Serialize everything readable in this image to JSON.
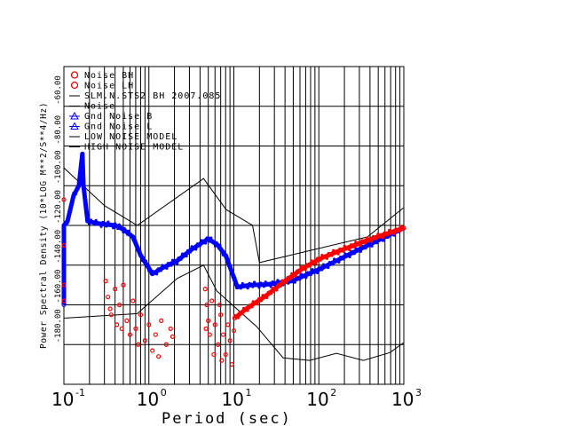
{
  "chart_data": {
    "type": "scatter",
    "title": "",
    "xlabel": "Period (sec)",
    "ylabel": "Power Spectral Density (10*LOG M**2/S**4/Hz)",
    "xscale": "log",
    "xlim": [
      0.1,
      1000
    ],
    "ylim": [
      -200,
      -40
    ],
    "grid": true,
    "legend_position": "top-left",
    "x_ticks": [
      {
        "base": "10",
        "exp": "-1"
      },
      {
        "base": "10",
        "exp": "0"
      },
      {
        "base": "10",
        "exp": "1"
      },
      {
        "base": "10",
        "exp": "2"
      },
      {
        "base": "10",
        "exp": "3"
      }
    ],
    "y_ticks": [
      "-60.00",
      "-80.00",
      "-100.00",
      "-120.00",
      "-140.00",
      "-160.00",
      "-180.00"
    ],
    "y_tick_values": [
      -60,
      -80,
      -100,
      -120,
      -140,
      -160,
      -180
    ],
    "legend": [
      {
        "label": "Noise BH",
        "symbol": "circle",
        "color": "#ff0000"
      },
      {
        "label": "Noise LH",
        "symbol": "circle",
        "color": "#ff0000"
      },
      {
        "label": "SLM.N.STS2 BH  2007.085",
        "symbol": "line",
        "color": "#000000"
      },
      {
        "label": "Noise",
        "symbol": "line",
        "color": "#000000"
      },
      {
        "label": "Gnd Noise B",
        "symbol": "triangle",
        "color": "#0000ff"
      },
      {
        "label": "Gnd Noise L",
        "symbol": "triangle",
        "color": "#0000ff"
      },
      {
        "label": "LOW NOISE MODEL",
        "symbol": "line",
        "color": "#000000"
      },
      {
        "label": "HIGH NOISE MODEL",
        "symbol": "line",
        "color": "#000000"
      }
    ],
    "series": [
      {
        "name": "HIGH NOISE MODEL",
        "color": "#000000",
        "kind": "line",
        "points": [
          [
            0.1,
            -91
          ],
          [
            0.3,
            -110
          ],
          [
            0.73,
            -120
          ],
          [
            4.4,
            -96.4
          ],
          [
            8.1,
            -112
          ],
          [
            16.6,
            -120
          ],
          [
            20,
            -138.7
          ],
          [
            372,
            -125.8
          ],
          [
            1000,
            -111
          ]
        ]
      },
      {
        "name": "LOW NOISE MODEL",
        "color": "#000000",
        "kind": "line",
        "points": [
          [
            0.1,
            -166.7
          ],
          [
            0.73,
            -164.4
          ],
          [
            2.15,
            -146.7
          ],
          [
            4.4,
            -140
          ],
          [
            6.3,
            -153
          ],
          [
            18.6,
            -171
          ],
          [
            38,
            -186.7
          ],
          [
            78,
            -188
          ],
          [
            161,
            -184.4
          ],
          [
            334,
            -188
          ],
          [
            690,
            -184
          ],
          [
            1000,
            -179
          ]
        ]
      },
      {
        "name": "Gnd Noise B",
        "color": "#0000ff",
        "kind": "dense",
        "points": [
          [
            0.1,
            -160
          ],
          [
            0.1,
            -120
          ],
          [
            0.11,
            -118
          ],
          [
            0.13,
            -105
          ],
          [
            0.15,
            -100
          ],
          [
            0.165,
            -84
          ],
          [
            0.17,
            -100
          ],
          [
            0.19,
            -117.8
          ],
          [
            0.25,
            -119
          ],
          [
            0.4,
            -120
          ],
          [
            0.5,
            -122
          ],
          [
            0.65,
            -125.8
          ],
          [
            0.8,
            -135
          ],
          [
            1.1,
            -144.4
          ],
          [
            1.5,
            -141
          ],
          [
            2.15,
            -137.8
          ],
          [
            3.2,
            -132
          ],
          [
            5.0,
            -126.7
          ],
          [
            6.5,
            -130
          ],
          [
            8.1,
            -135.6
          ],
          [
            11,
            -151
          ],
          [
            16,
            -150
          ],
          [
            23.6,
            -149.8
          ],
          [
            48,
            -148
          ],
          [
            100,
            -142.2
          ],
          [
            262,
            -133.3
          ],
          [
            1000,
            -121.3
          ]
        ]
      },
      {
        "name": "Noise BH",
        "color": "#ff0000",
        "kind": "dense",
        "points": [
          [
            10.2,
            -166.7
          ],
          [
            14,
            -162
          ],
          [
            23.6,
            -155.6
          ],
          [
            40,
            -148
          ],
          [
            61.9,
            -142.2
          ],
          [
            100,
            -137
          ],
          [
            162,
            -133.3
          ],
          [
            260,
            -130
          ],
          [
            418,
            -126.7
          ],
          [
            1000,
            -121.3
          ]
        ]
      },
      {
        "name": "Noise BH scatter",
        "color": "#ff0000",
        "kind": "scatter",
        "points": [
          [
            0.1,
            -107
          ],
          [
            0.1,
            -130
          ],
          [
            0.1,
            -150
          ],
          [
            0.1,
            -158
          ],
          [
            0.31,
            -148
          ],
          [
            0.33,
            -156
          ],
          [
            0.36,
            -165
          ],
          [
            0.4,
            -152
          ],
          [
            0.42,
            -170
          ],
          [
            0.45,
            -160
          ],
          [
            0.5,
            -150
          ],
          [
            0.55,
            -168
          ],
          [
            0.6,
            -175
          ],
          [
            0.65,
            -158
          ],
          [
            0.7,
            -172
          ],
          [
            0.8,
            -165
          ],
          [
            0.9,
            -178
          ],
          [
            1.0,
            -170
          ],
          [
            1.1,
            -183
          ],
          [
            1.2,
            -175
          ],
          [
            1.4,
            -168
          ],
          [
            1.6,
            -180
          ],
          [
            1.8,
            -172
          ],
          [
            1.9,
            -176
          ],
          [
            0.35,
            -162
          ],
          [
            0.48,
            -172
          ],
          [
            0.75,
            -180
          ],
          [
            1.3,
            -186
          ],
          [
            4.6,
            -152
          ],
          [
            4.8,
            -160
          ],
          [
            5.0,
            -168
          ],
          [
            5.2,
            -175
          ],
          [
            5.5,
            -158
          ],
          [
            6.0,
            -170
          ],
          [
            6.5,
            -180
          ],
          [
            7.0,
            -165
          ],
          [
            7.5,
            -175
          ],
          [
            8.0,
            -185
          ],
          [
            8.5,
            -170
          ],
          [
            9.0,
            -178
          ],
          [
            9.5,
            -190
          ],
          [
            10,
            -173
          ],
          [
            5.8,
            -185
          ],
          [
            7.2,
            -188
          ],
          [
            4.7,
            -172
          ],
          [
            6.8,
            -160
          ]
        ]
      }
    ]
  }
}
